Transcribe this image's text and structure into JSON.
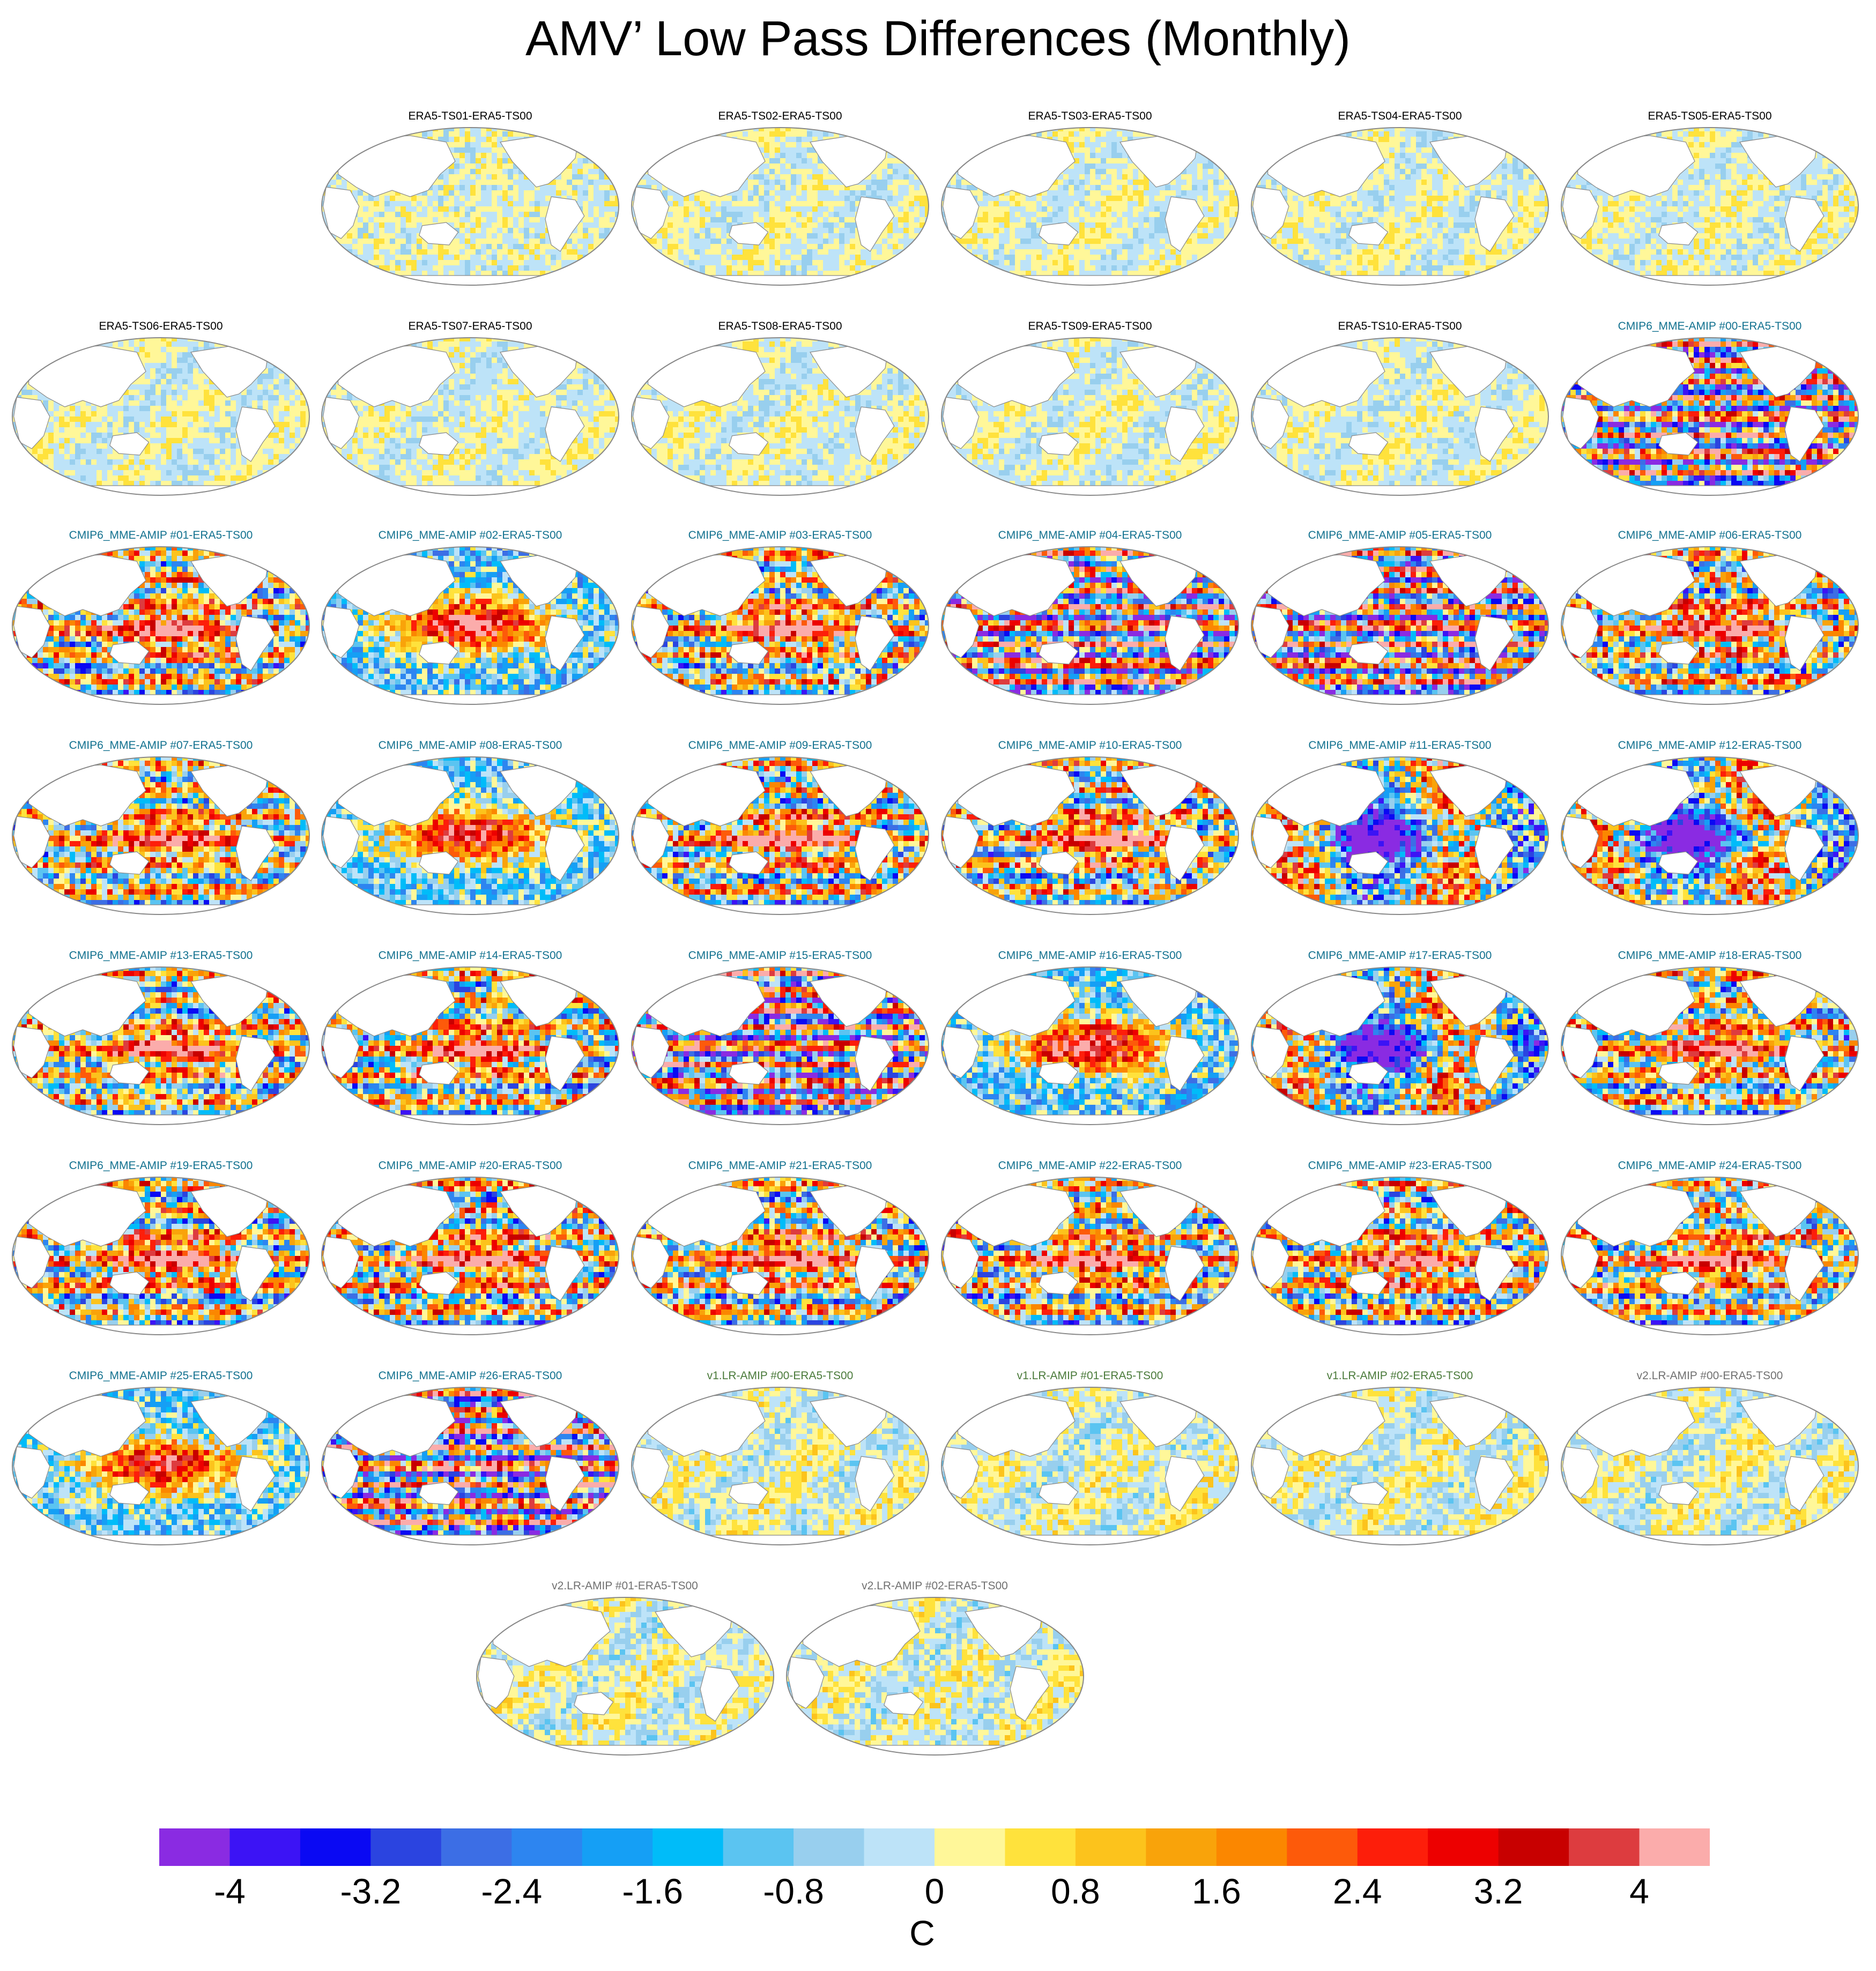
{
  "title": "AMV’ Low Pass Differences (Monthly)",
  "colors": {
    "levels": [
      "#8a2be2",
      "#3c13f5",
      "#0a09f3",
      "#2b44e0",
      "#3c6ee5",
      "#2d85f0",
      "#159ff5",
      "#00bcf9",
      "#5bc4f1",
      "#98cfee",
      "#bde3f8",
      "#fff799",
      "#ffe23c",
      "#fcc31c",
      "#f9a30a",
      "#fb8700",
      "#fd5a0a",
      "#fd1e0a",
      "#ed0000",
      "#c80000",
      "#dd3c3f",
      "#fbacab"
    ],
    "era_title": "#000000",
    "cmip_title": "#12718f",
    "v1_title": "#4a7a3a",
    "v2_title": "#707070",
    "land": "#ffffff",
    "outline": "#888888"
  },
  "chart_data": {
    "type": "heatmap",
    "variable": "AMV’ low pass SST difference",
    "projection": "global map panels, Pacific-centered",
    "colorbar": {
      "label": "C",
      "min": -4.4,
      "max": 4.4,
      "interval": 0.4,
      "tick_values": [
        -4,
        -3.2,
        -2.4,
        -1.6,
        -0.8,
        0,
        0.8,
        1.6,
        2.4,
        3.2,
        4
      ],
      "tick_labels": [
        "-4",
        "-3.2",
        "-2.4",
        "-1.6",
        "-0.8",
        "0",
        "0.8",
        "1.6",
        "2.4",
        "3.2",
        "4"
      ]
    },
    "panels": [
      {
        "title": "ERA5-TS01-ERA5-TS00",
        "group": "era",
        "row": 0,
        "col": 1,
        "pattern": "noise",
        "amp": 0.5
      },
      {
        "title": "ERA5-TS02-ERA5-TS00",
        "group": "era",
        "row": 0,
        "col": 2,
        "pattern": "weak",
        "amp": 0.6
      },
      {
        "title": "ERA5-TS03-ERA5-TS00",
        "group": "era",
        "row": 0,
        "col": 3,
        "pattern": "weak",
        "amp": 0.6
      },
      {
        "title": "ERA5-TS04-ERA5-TS00",
        "group": "era",
        "row": 0,
        "col": 4,
        "pattern": "weak",
        "amp": 0.6
      },
      {
        "title": "ERA5-TS05-ERA5-TS00",
        "group": "era",
        "row": 0,
        "col": 5,
        "pattern": "weak",
        "amp": 0.6
      },
      {
        "title": "ERA5-TS06-ERA5-TS00",
        "group": "era",
        "row": 1,
        "col": 0,
        "pattern": "weak",
        "amp": 0.6
      },
      {
        "title": "ERA5-TS07-ERA5-TS00",
        "group": "era",
        "row": 1,
        "col": 1,
        "pattern": "weak",
        "amp": 0.6
      },
      {
        "title": "ERA5-TS08-ERA5-TS00",
        "group": "era",
        "row": 1,
        "col": 2,
        "pattern": "weak",
        "amp": 0.6
      },
      {
        "title": "ERA5-TS09-ERA5-TS00",
        "group": "era",
        "row": 1,
        "col": 3,
        "pattern": "weak",
        "amp": 0.6
      },
      {
        "title": "ERA5-TS10-ERA5-TS00",
        "group": "era",
        "row": 1,
        "col": 4,
        "pattern": "weak",
        "amp": 0.6
      },
      {
        "title": "CMIP6_MME-AMIP  #00-ERA5-TS00",
        "group": "cmip",
        "row": 1,
        "col": 5,
        "pattern": "stripes",
        "amp": 4.2
      },
      {
        "title": "CMIP6_MME-AMIP  #01-ERA5-TS00",
        "group": "cmip",
        "row": 2,
        "col": 0,
        "pattern": "enso",
        "amp": 4.0
      },
      {
        "title": "CMIP6_MME-AMIP  #02-ERA5-TS00",
        "group": "cmip",
        "row": 2,
        "col": 1,
        "pattern": "enso-strong",
        "amp": 4.4
      },
      {
        "title": "CMIP6_MME-AMIP  #03-ERA5-TS00",
        "group": "cmip",
        "row": 2,
        "col": 2,
        "pattern": "enso",
        "amp": 4.0
      },
      {
        "title": "CMIP6_MME-AMIP  #04-ERA5-TS00",
        "group": "cmip",
        "row": 2,
        "col": 3,
        "pattern": "stripes",
        "amp": 4.2
      },
      {
        "title": "CMIP6_MME-AMIP  #05-ERA5-TS00",
        "group": "cmip",
        "row": 2,
        "col": 4,
        "pattern": "stripes",
        "amp": 4.2
      },
      {
        "title": "CMIP6_MME-AMIP  #06-ERA5-TS00",
        "group": "cmip",
        "row": 2,
        "col": 5,
        "pattern": "enso",
        "amp": 4.0
      },
      {
        "title": "CMIP6_MME-AMIP  #07-ERA5-TS00",
        "group": "cmip",
        "row": 3,
        "col": 0,
        "pattern": "enso",
        "amp": 3.6
      },
      {
        "title": "CMIP6_MME-AMIP  #08-ERA5-TS00",
        "group": "cmip",
        "row": 3,
        "col": 1,
        "pattern": "enso-strong",
        "amp": 4.0
      },
      {
        "title": "CMIP6_MME-AMIP  #09-ERA5-TS00",
        "group": "cmip",
        "row": 3,
        "col": 2,
        "pattern": "enso",
        "amp": 4.0
      },
      {
        "title": "CMIP6_MME-AMIP  #10-ERA5-TS00",
        "group": "cmip",
        "row": 3,
        "col": 3,
        "pattern": "enso",
        "amp": 4.0
      },
      {
        "title": "CMIP6_MME-AMIP  #11-ERA5-TS00",
        "group": "cmip",
        "row": 3,
        "col": 4,
        "pattern": "anti",
        "amp": 4.4
      },
      {
        "title": "CMIP6_MME-AMIP  #12-ERA5-TS00",
        "group": "cmip",
        "row": 3,
        "col": 5,
        "pattern": "anti",
        "amp": 4.4
      },
      {
        "title": "CMIP6_MME-AMIP  #13-ERA5-TS00",
        "group": "cmip",
        "row": 4,
        "col": 0,
        "pattern": "enso",
        "amp": 3.8
      },
      {
        "title": "CMIP6_MME-AMIP  #14-ERA5-TS00",
        "group": "cmip",
        "row": 4,
        "col": 1,
        "pattern": "enso",
        "amp": 3.8
      },
      {
        "title": "CMIP6_MME-AMIP  #15-ERA5-TS00",
        "group": "cmip",
        "row": 4,
        "col": 2,
        "pattern": "stripes",
        "amp": 4.2
      },
      {
        "title": "CMIP6_MME-AMIP  #16-ERA5-TS00",
        "group": "cmip",
        "row": 4,
        "col": 3,
        "pattern": "enso-strong",
        "amp": 4.4
      },
      {
        "title": "CMIP6_MME-AMIP  #17-ERA5-TS00",
        "group": "cmip",
        "row": 4,
        "col": 4,
        "pattern": "anti",
        "amp": 4.4
      },
      {
        "title": "CMIP6_MME-AMIP  #18-ERA5-TS00",
        "group": "cmip",
        "row": 4,
        "col": 5,
        "pattern": "enso",
        "amp": 4.0
      },
      {
        "title": "CMIP6_MME-AMIP  #19-ERA5-TS00",
        "group": "cmip",
        "row": 5,
        "col": 0,
        "pattern": "enso",
        "amp": 4.0
      },
      {
        "title": "CMIP6_MME-AMIP  #20-ERA5-TS00",
        "group": "cmip",
        "row": 5,
        "col": 1,
        "pattern": "enso",
        "amp": 4.0
      },
      {
        "title": "CMIP6_MME-AMIP  #21-ERA5-TS00",
        "group": "cmip",
        "row": 5,
        "col": 2,
        "pattern": "enso",
        "amp": 4.0
      },
      {
        "title": "CMIP6_MME-AMIP  #22-ERA5-TS00",
        "group": "cmip",
        "row": 5,
        "col": 3,
        "pattern": "enso",
        "amp": 4.0
      },
      {
        "title": "CMIP6_MME-AMIP  #23-ERA5-TS00",
        "group": "cmip",
        "row": 5,
        "col": 4,
        "pattern": "enso",
        "amp": 4.0
      },
      {
        "title": "CMIP6_MME-AMIP  #24-ERA5-TS00",
        "group": "cmip",
        "row": 5,
        "col": 5,
        "pattern": "enso",
        "amp": 4.0
      },
      {
        "title": "CMIP6_MME-AMIP  #25-ERA5-TS00",
        "group": "cmip",
        "row": 6,
        "col": 0,
        "pattern": "enso-strong",
        "amp": 3.8
      },
      {
        "title": "CMIP6_MME-AMIP  #26-ERA5-TS00",
        "group": "cmip",
        "row": 6,
        "col": 1,
        "pattern": "stripes",
        "amp": 4.4
      },
      {
        "title": "v1.LR-AMIP  #00-ERA5-TS00",
        "group": "v1",
        "row": 6,
        "col": 2,
        "pattern": "weak",
        "amp": 0.9
      },
      {
        "title": "v1.LR-AMIP  #01-ERA5-TS00",
        "group": "v1",
        "row": 6,
        "col": 3,
        "pattern": "weak",
        "amp": 0.9
      },
      {
        "title": "v1.LR-AMIP  #02-ERA5-TS00",
        "group": "v1",
        "row": 6,
        "col": 4,
        "pattern": "weak",
        "amp": 0.9
      },
      {
        "title": "v2.LR-AMIP  #00-ERA5-TS00",
        "group": "v2",
        "row": 6,
        "col": 5,
        "pattern": "weak",
        "amp": 0.9
      },
      {
        "title": "v2.LR-AMIP  #01-ERA5-TS00",
        "group": "v2",
        "row": 7,
        "col": 1.5,
        "pattern": "weak",
        "amp": 0.9
      },
      {
        "title": "v2.LR-AMIP  #02-ERA5-TS00",
        "group": "v2",
        "row": 7,
        "col": 2.5,
        "pattern": "weak",
        "amp": 0.9
      }
    ]
  }
}
